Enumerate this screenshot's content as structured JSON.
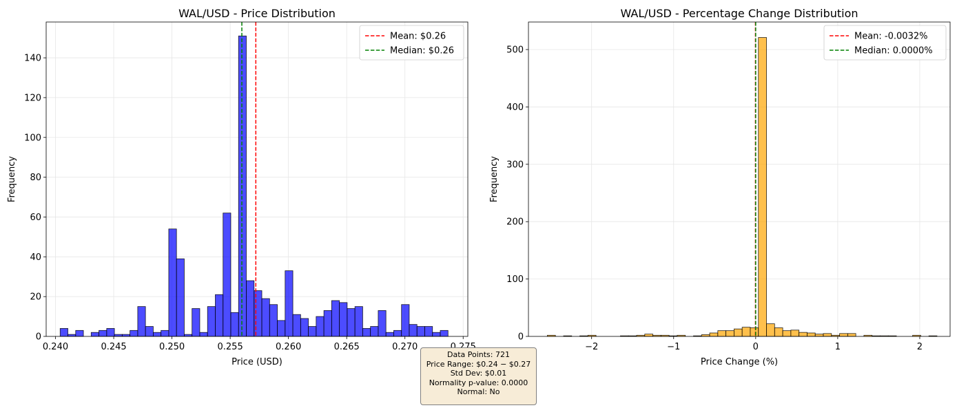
{
  "chart_data": [
    {
      "type": "bar",
      "title": "WAL/USD - Price Distribution",
      "xlabel": "Price (USD)",
      "ylabel": "Frequency",
      "xlim": [
        0.2392,
        0.2754
      ],
      "ylim": [
        0,
        158
      ],
      "xticks": [
        0.24,
        0.245,
        0.25,
        0.255,
        0.26,
        0.265,
        0.27,
        0.275
      ],
      "xtick_labels": [
        "0.240",
        "0.245",
        "0.250",
        "0.255",
        "0.260",
        "0.265",
        "0.270",
        "0.275"
      ],
      "yticks": [
        0,
        20,
        40,
        60,
        80,
        100,
        120,
        140
      ],
      "grid": true,
      "legend_position": "top-right",
      "bar_color": "#0000ff",
      "bin_edges_range": [
        0.2404,
        0.2737
      ],
      "values": [
        4,
        1,
        3,
        0,
        2,
        3,
        4,
        1,
        1,
        3,
        15,
        5,
        2,
        3,
        54,
        39,
        1,
        14,
        2,
        15,
        21,
        62,
        12,
        151,
        28,
        23,
        19,
        16,
        8,
        33,
        11,
        9,
        5,
        10,
        13,
        18,
        17,
        14,
        15,
        4,
        5,
        13,
        2,
        3,
        16,
        6,
        5,
        5,
        2,
        3
      ],
      "lines": [
        {
          "name": "Mean: $0.26",
          "x": 0.2572,
          "color": "#ff0000"
        },
        {
          "name": "Median: $0.26",
          "x": 0.256,
          "color": "#008000"
        }
      ]
    },
    {
      "type": "bar",
      "title": "WAL/USD - Percentage Change Distribution",
      "xlabel": "Price Change (%)",
      "ylabel": "Frequency",
      "xlim": [
        -2.77,
        2.37
      ],
      "ylim": [
        0,
        548
      ],
      "xticks": [
        -2,
        -1,
        0,
        1,
        2
      ],
      "xtick_labels": [
        "−2",
        "−1",
        "0",
        "1",
        "2"
      ],
      "yticks": [
        0,
        100,
        200,
        300,
        400,
        500
      ],
      "grid": true,
      "legend_position": "top-right",
      "bar_color": "#ffa500",
      "bin_edges_range": [
        -2.54,
        2.21
      ],
      "values": [
        2,
        0,
        1,
        0,
        1,
        2,
        0,
        0,
        0,
        1,
        1,
        2,
        4,
        2,
        2,
        1,
        2,
        0,
        1,
        3,
        6,
        10,
        10,
        13,
        16,
        15,
        521,
        22,
        15,
        10,
        11,
        7,
        6,
        4,
        5,
        2,
        5,
        5,
        0,
        2,
        1,
        1,
        1,
        0,
        0,
        2,
        0,
        1
      ],
      "lines": [
        {
          "name": "Mean: -0.0032%",
          "x": -0.0032,
          "color": "#ff0000"
        },
        {
          "name": "Median: 0.0000%",
          "x": 0.0,
          "color": "#008000"
        }
      ]
    }
  ],
  "stats": [
    "Data Points: 721",
    "Price Range: $0.24 − $0.27",
    "Std Dev: $0.01",
    "Normality p-value: 0.0000",
    "Normal: No"
  ]
}
